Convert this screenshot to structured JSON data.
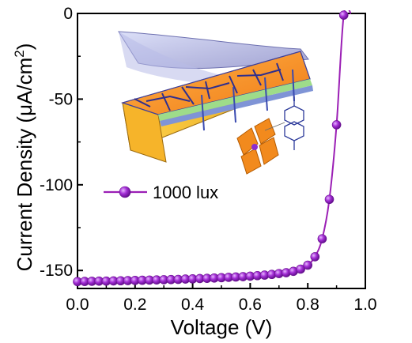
{
  "chart_data": {
    "type": "line",
    "xlabel": "Voltage (V)",
    "ylabel_main": "Current Density (μA/cm",
    "ylabel_sup": "2",
    "ylabel_close": ")",
    "xlim": [
      0.0,
      1.0
    ],
    "ylim": [
      -160,
      0
    ],
    "x_ticks": [
      0.0,
      0.2,
      0.4,
      0.6,
      0.8,
      1.0
    ],
    "x_tick_labels": [
      "0.0",
      "0.2",
      "0.4",
      "0.6",
      "0.8",
      "1.0"
    ],
    "y_ticks": [
      0,
      -50,
      -100,
      -150
    ],
    "y_tick_labels": [
      "0",
      "-50",
      "-100",
      "-150"
    ],
    "legend_placement": "middle-left",
    "series": [
      {
        "name": "1000 lux",
        "color": "#9b1fb5",
        "marker_color": "#a42fd6",
        "x": [
          0.0,
          0.025,
          0.05,
          0.075,
          0.1,
          0.125,
          0.15,
          0.175,
          0.2,
          0.225,
          0.25,
          0.275,
          0.3,
          0.325,
          0.35,
          0.375,
          0.4,
          0.425,
          0.45,
          0.475,
          0.5,
          0.525,
          0.55,
          0.575,
          0.6,
          0.625,
          0.65,
          0.675,
          0.7,
          0.725,
          0.75,
          0.775,
          0.8,
          0.825,
          0.85,
          0.875,
          0.9,
          0.925,
          0.95
        ],
        "y": [
          -156.5,
          -156.4,
          -156.3,
          -156.2,
          -156.2,
          -156.1,
          -156.0,
          -155.9,
          -155.8,
          -155.7,
          -155.6,
          -155.5,
          -155.4,
          -155.3,
          -155.2,
          -155.0,
          -154.9,
          -154.7,
          -154.6,
          -154.4,
          -154.2,
          -154.0,
          -153.8,
          -153.6,
          -153.3,
          -153.0,
          -152.7,
          -152.3,
          -151.8,
          -151.3,
          -150.5,
          -149.2,
          -146.9,
          -142.0,
          -131.5,
          -108.5,
          -65.0,
          -1.0,
          0.0
        ]
      }
    ]
  }
}
